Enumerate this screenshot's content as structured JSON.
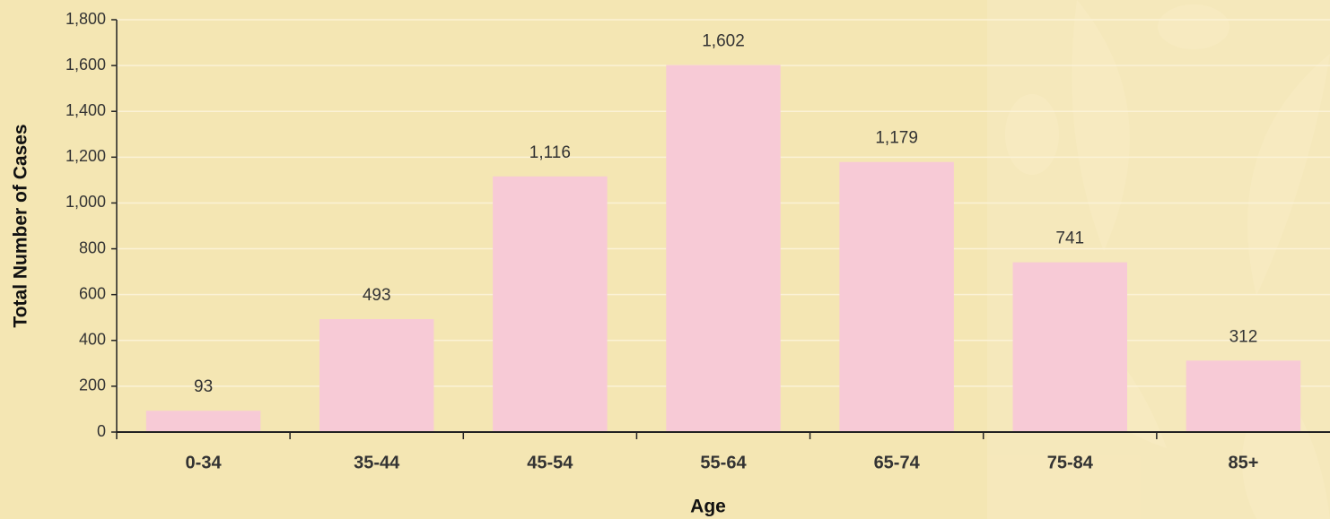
{
  "chart_data": {
    "type": "bar",
    "x_label": "Age",
    "y_label": "Total Number of Cases",
    "categories": [
      "0-34",
      "35-44",
      "45-54",
      "55-64",
      "65-74",
      "75-84",
      "85+"
    ],
    "values": [
      93,
      493,
      1116,
      1602,
      1179,
      741,
      312
    ],
    "value_labels": [
      "93",
      "493",
      "1,116",
      "1,602",
      "1,179",
      "741",
      "312"
    ],
    "color": "#f7cad6",
    "ylim": [
      0,
      1800
    ],
    "yticks": [
      0,
      200,
      400,
      600,
      800,
      {
        "value": 1000,
        "label": "1,000"
      },
      {
        "value": 1200,
        "label": "1,200"
      },
      {
        "value": 1400,
        "label": "1,400"
      },
      {
        "value": 1600,
        "label": "1,600"
      },
      {
        "value": 1800,
        "label": "1,800"
      }
    ],
    "grid": true
  }
}
